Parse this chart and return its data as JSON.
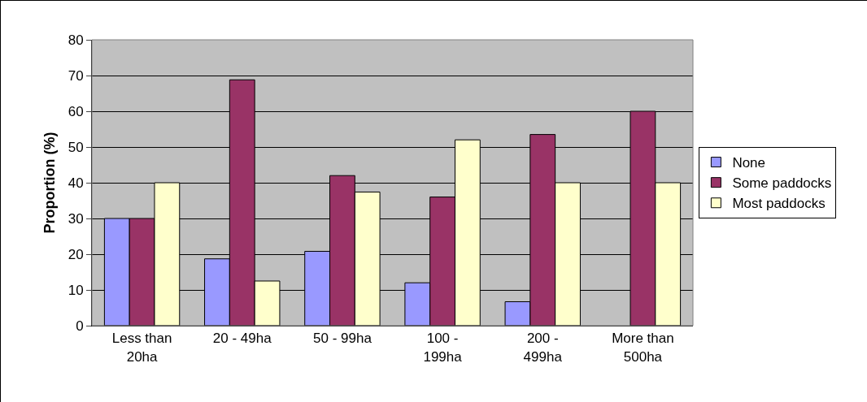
{
  "chart_data": {
    "type": "bar",
    "ylabel": "Proportion (%)",
    "categories": [
      "Less than 20ha",
      "20 - 49ha",
      "50 - 99ha",
      "100 - 199ha",
      "200 - 499ha",
      "More than 500ha"
    ],
    "series": [
      {
        "name": "None",
        "color": "#9999ff",
        "values": [
          30,
          18.7,
          20.8,
          12,
          6.7,
          0
        ]
      },
      {
        "name": "Some paddocks",
        "color": "#993366",
        "values": [
          30,
          68.8,
          42,
          36,
          53.5,
          60
        ]
      },
      {
        "name": "Most paddocks",
        "color": "#ffffcc",
        "values": [
          40,
          12.5,
          37.4,
          52,
          40,
          40
        ]
      }
    ],
    "ylim": [
      0,
      80
    ],
    "yticks": [
      0,
      10,
      20,
      30,
      40,
      50,
      60,
      70,
      80
    ],
    "grid": "y",
    "legend": "right"
  }
}
